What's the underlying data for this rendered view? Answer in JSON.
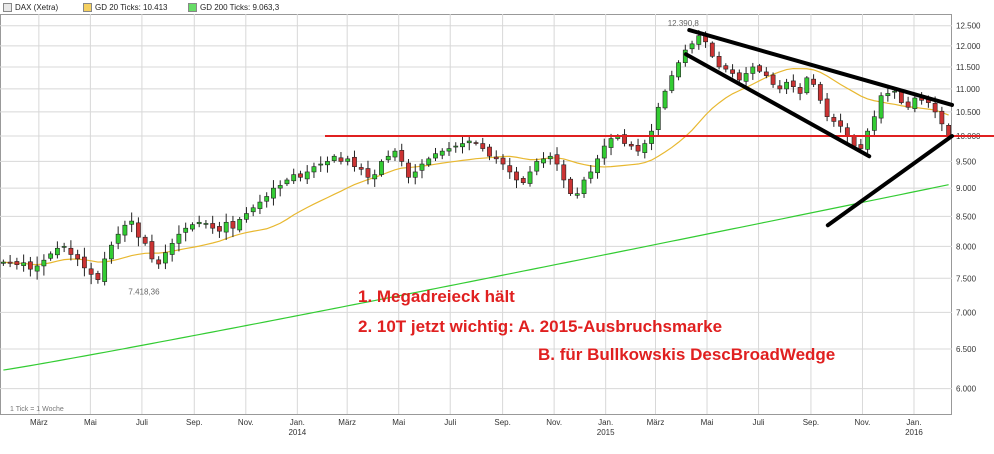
{
  "legend": {
    "symbol": "DAX (Xetra)",
    "sma20": "GD 20 Ticks: 10.413",
    "sma200": "GD 200 Ticks: 9.063,3"
  },
  "colors": {
    "up_candle": "#33cc33",
    "down_candle": "#cc3333",
    "sma20": "#e8b830",
    "sma200": "#33cc33",
    "annotation": "#e02020",
    "trendlines": "#000000",
    "grid": "#d8d8d8"
  },
  "footnote": "1 Tick = 1 Woche",
  "annotations": {
    "high_label": "12.390,8",
    "low_label": "7.418,36",
    "text_line1": "1. Megadreieck hält",
    "text_line2": "2. 10T jetzt wichtig: A. 2015-Ausbruchsmarke",
    "text_line3": "B. für Bullkowskis DescBroadWedge"
  },
  "chart_data": {
    "type": "candlestick",
    "title": "DAX (Xetra)",
    "interval": "1 Tick = 1 Woche",
    "x_tick_labels": [
      "März",
      "Mai",
      "Juli",
      "Sep.",
      "Nov.",
      "Jan. 2014",
      "März",
      "Mai",
      "Juli",
      "Sep.",
      "Nov.",
      "Jan. 2015",
      "März",
      "Mai",
      "Juli",
      "Sep.",
      "Nov.",
      "Jan. 2016"
    ],
    "y_tick_labels": [
      "12.500",
      "12.000",
      "11.500",
      "11.000",
      "10.500",
      "10.000",
      "9.500",
      "9.000",
      "8.500",
      "8.000",
      "7.500",
      "7.000",
      "6.500",
      "6.000"
    ],
    "y_ticks": [
      12500,
      12000,
      11500,
      11000,
      10500,
      10000,
      9500,
      9000,
      8500,
      8000,
      7500,
      7000,
      6500,
      6000
    ],
    "y_scale": "log",
    "ylim": [
      5700,
      12800
    ],
    "grid": true,
    "legend_position": "top-left",
    "x_range": [
      "2013-01-14",
      "2016-02-15"
    ],
    "weekly_close": [
      7750,
      7730,
      7710,
      7740,
      7640,
      7690,
      7780,
      7880,
      7970,
      8000,
      7870,
      7800,
      7660,
      7560,
      7480,
      7800,
      8020,
      8200,
      8350,
      8420,
      8150,
      8050,
      7800,
      7720,
      7900,
      8050,
      8200,
      8300,
      8360,
      8400,
      8380,
      8300,
      8250,
      8400,
      8300,
      8450,
      8550,
      8650,
      8750,
      8850,
      9000,
      9050,
      9150,
      9250,
      9200,
      9300,
      9400,
      9450,
      9500,
      9600,
      9500,
      9550,
      9400,
      9350,
      9200,
      9250,
      9500,
      9600,
      9700,
      9500,
      9200,
      9300,
      9450,
      9550,
      9650,
      9700,
      9750,
      9800,
      9850,
      9900,
      9850,
      9750,
      9600,
      9550,
      9450,
      9300,
      9150,
      9100,
      9300,
      9500,
      9550,
      9600,
      9450,
      9150,
      8900,
      8900,
      9150,
      9300,
      9550,
      9800,
      9950,
      10000,
      9850,
      9800,
      9700,
      9850,
      10100,
      10600,
      10950,
      11300,
      11600,
      11900,
      12050,
      12250,
      12100,
      11750,
      11500,
      11450,
      11350,
      11200,
      11350,
      11500,
      11400,
      11300,
      11100,
      11000,
      11150,
      11050,
      10900,
      11250,
      11100,
      10750,
      10400,
      10300,
      10200,
      10000,
      9800,
      9750,
      10100,
      10400,
      10850,
      10900,
      10950,
      10700,
      10600,
      10800,
      10750,
      10700,
      10500,
      10250,
      10000
    ],
    "annotations_values": [
      {
        "label": "12.390,8",
        "value": 12390.8,
        "date": "2015-04-10"
      },
      {
        "label": "7.418,36",
        "value": 7418.36,
        "date": "2013-06-24"
      }
    ],
    "series": [
      {
        "name": "GD 20 Ticks",
        "last": 10413
      },
      {
        "name": "GD 200 Ticks",
        "last": 9063.3
      }
    ],
    "horizontal_lines": [
      {
        "value": 10000
      }
    ],
    "trendlines": [
      {
        "from": [
          "2015-04-10",
          12390
        ],
        "to": [
          "2016-02-15",
          10650
        ]
      },
      {
        "from": [
          "2015-04-06",
          11800
        ],
        "to": [
          "2015-11-09",
          9600
        ]
      },
      {
        "from": [
          "2015-09-21",
          8350
        ],
        "to": [
          "2016-02-15",
          10000
        ]
      }
    ]
  }
}
